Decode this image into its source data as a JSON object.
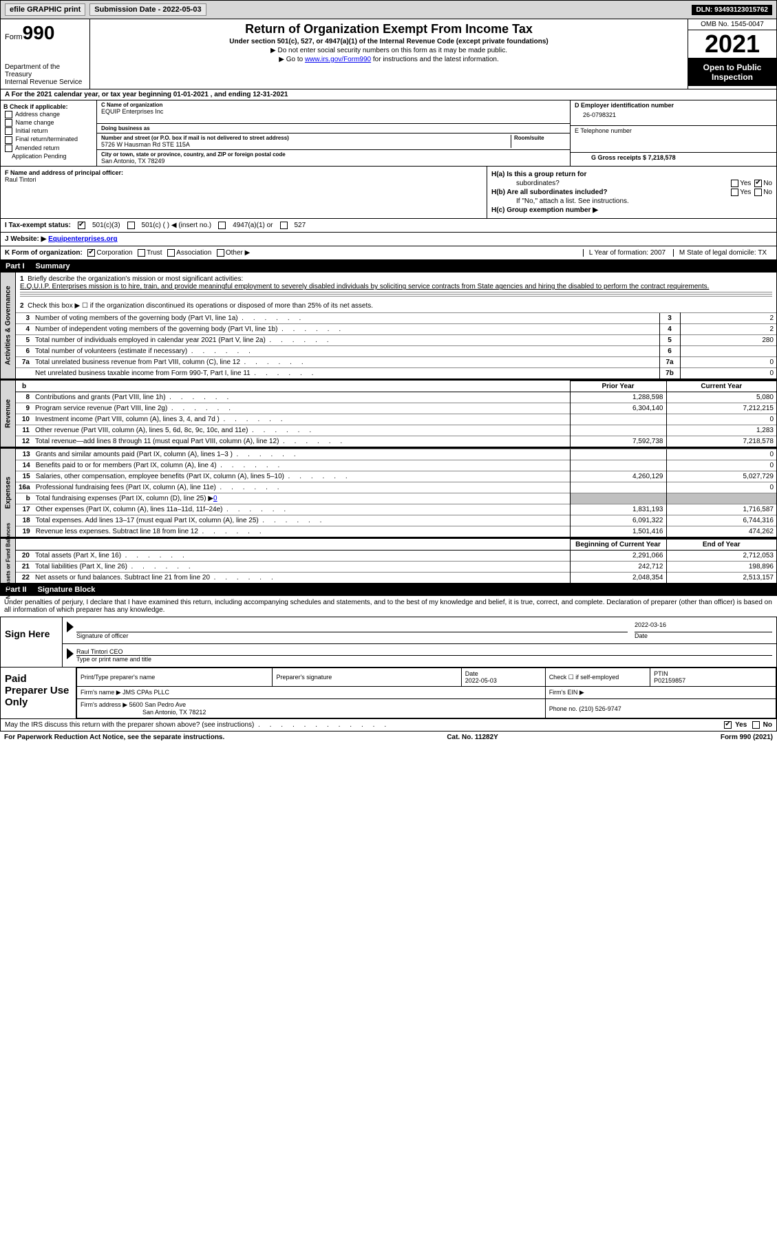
{
  "topbar": {
    "efile": "efile GRAPHIC print",
    "submission_label": "Submission Date - 2022-05-03",
    "dln": "DLN: 93493123015762"
  },
  "header": {
    "form_prefix": "Form",
    "form_num": "990",
    "title": "Return of Organization Exempt From Income Tax",
    "subtitle": "Under section 501(c), 527, or 4947(a)(1) of the Internal Revenue Code (except private foundations)",
    "note1": "▶ Do not enter social security numbers on this form as it may be made public.",
    "note2_pre": "▶ Go to ",
    "note2_link": "www.irs.gov/Form990",
    "note2_post": " for instructions and the latest information.",
    "dept": "Department of the Treasury",
    "irs": "Internal Revenue Service",
    "omb": "OMB No. 1545-0047",
    "year": "2021",
    "open": "Open to Public Inspection"
  },
  "period": {
    "text_a": "A For the 2021 calendar year, or tax year beginning 01-01-2021",
    "text_b": ", and ending 12-31-2021"
  },
  "colB": {
    "title": "B Check if applicable:",
    "items": [
      "Address change",
      "Name change",
      "Initial return",
      "Final return/terminated",
      "Amended return",
      "Application Pending"
    ]
  },
  "org": {
    "name_label": "C Name of organization",
    "name": "EQUIP Enterprises Inc",
    "dba_label": "Doing business as",
    "addr_label": "Number and street (or P.O. box if mail is not delivered to street address)",
    "room_label": "Room/suite",
    "addr": "5726 W Hausman Rd STE 115A",
    "city_label": "City or town, state or province, country, and ZIP or foreign postal code",
    "city": "San Antonio, TX  78249"
  },
  "right": {
    "ein_label": "D Employer identification number",
    "ein": "26-0798321",
    "phone_label": "E Telephone number",
    "gross_label": "G Gross receipts $ 7,218,578"
  },
  "f": {
    "label": "F  Name and address of principal officer:",
    "name": "Raul Tintori"
  },
  "h": {
    "a": "H(a)  Is this a group return for",
    "a2": "subordinates?",
    "b": "H(b)  Are all subordinates included?",
    "b2": "If \"No,\" attach a list. See instructions.",
    "c": "H(c)  Group exemption number ▶",
    "yes": "Yes",
    "no": "No"
  },
  "i": {
    "label": "I   Tax-exempt status:",
    "opt1": "501(c)(3)",
    "opt2": "501(c) (  ) ◀ (insert no.)",
    "opt3": "4947(a)(1) or",
    "opt4": "527"
  },
  "j": {
    "label": "J  Website: ▶",
    "value": "Equipenterprises.org"
  },
  "k": {
    "label": "K Form of organization:",
    "opts": [
      "Corporation",
      "Trust",
      "Association",
      "Other ▶"
    ],
    "l": "L Year of formation: 2007",
    "m": "M State of legal domicile: TX"
  },
  "parts": {
    "p1": "Part I",
    "p1t": "Summary",
    "p2": "Part II",
    "p2t": "Signature Block"
  },
  "summary": {
    "q1": "Briefly describe the organization's mission or most significant activities:",
    "mission": "E.Q.U.I.P. Enterprises mission is to hire, train, and provide meaningful employment to severely disabled individuals by soliciting service contracts from State agencies and hiring the disabled to perform the contract requirements.",
    "q2": "Check this box ▶ ☐  if the organization discontinued its operations or disposed of more than 25% of its net assets.",
    "lines_gov": [
      {
        "n": "3",
        "t": "Number of voting members of the governing body (Part VI, line 1a)",
        "box": "3",
        "v": "2"
      },
      {
        "n": "4",
        "t": "Number of independent voting members of the governing body (Part VI, line 1b)",
        "box": "4",
        "v": "2"
      },
      {
        "n": "5",
        "t": "Total number of individuals employed in calendar year 2021 (Part V, line 2a)",
        "box": "5",
        "v": "280"
      },
      {
        "n": "6",
        "t": "Total number of volunteers (estimate if necessary)",
        "box": "6",
        "v": ""
      },
      {
        "n": "7a",
        "t": "Total unrelated business revenue from Part VIII, column (C), line 12",
        "box": "7a",
        "v": "0"
      },
      {
        "n": "",
        "t": "Net unrelated business taxable income from Form 990-T, Part I, line 11",
        "box": "7b",
        "v": "0"
      }
    ],
    "py": "Prior Year",
    "cy": "Current Year",
    "lines_rev": [
      {
        "n": "8",
        "t": "Contributions and grants (Part VIII, line 1h)",
        "py": "1,288,598",
        "cy": "5,080"
      },
      {
        "n": "9",
        "t": "Program service revenue (Part VIII, line 2g)",
        "py": "6,304,140",
        "cy": "7,212,215"
      },
      {
        "n": "10",
        "t": "Investment income (Part VIII, column (A), lines 3, 4, and 7d )",
        "py": "",
        "cy": "0"
      },
      {
        "n": "11",
        "t": "Other revenue (Part VIII, column (A), lines 5, 6d, 8c, 9c, 10c, and 11e)",
        "py": "",
        "cy": "1,283"
      },
      {
        "n": "12",
        "t": "Total revenue—add lines 8 through 11 (must equal Part VIII, column (A), line 12)",
        "py": "7,592,738",
        "cy": "7,218,578"
      }
    ],
    "lines_exp": [
      {
        "n": "13",
        "t": "Grants and similar amounts paid (Part IX, column (A), lines 1–3 )",
        "py": "",
        "cy": "0"
      },
      {
        "n": "14",
        "t": "Benefits paid to or for members (Part IX, column (A), line 4)",
        "py": "",
        "cy": "0"
      },
      {
        "n": "15",
        "t": "Salaries, other compensation, employee benefits (Part IX, column (A), lines 5–10)",
        "py": "4,260,129",
        "cy": "5,027,729"
      },
      {
        "n": "16a",
        "t": "Professional fundraising fees (Part IX, column (A), line 11e)",
        "py": "",
        "cy": "0"
      }
    ],
    "line_b": {
      "n": "b",
      "t": "Total fundraising expenses (Part IX, column (D), line 25) ▶",
      "val": "0"
    },
    "lines_exp2": [
      {
        "n": "17",
        "t": "Other expenses (Part IX, column (A), lines 11a–11d, 11f–24e)",
        "py": "1,831,193",
        "cy": "1,716,587"
      },
      {
        "n": "18",
        "t": "Total expenses. Add lines 13–17 (must equal Part IX, column (A), line 25)",
        "py": "6,091,322",
        "cy": "6,744,316"
      },
      {
        "n": "19",
        "t": "Revenue less expenses. Subtract line 18 from line 12",
        "py": "1,501,416",
        "cy": "474,262"
      }
    ],
    "boy": "Beginning of Current Year",
    "eoy": "End of Year",
    "lines_na": [
      {
        "n": "20",
        "t": "Total assets (Part X, line 16)",
        "py": "2,291,066",
        "cy": "2,712,053"
      },
      {
        "n": "21",
        "t": "Total liabilities (Part X, line 26)",
        "py": "242,712",
        "cy": "198,896"
      },
      {
        "n": "22",
        "t": "Net assets or fund balances. Subtract line 21 from line 20",
        "py": "2,048,354",
        "cy": "2,513,157"
      }
    ],
    "vlabels": {
      "gov": "Activities & Governance",
      "rev": "Revenue",
      "exp": "Expenses",
      "na": "Net Assets or Fund Balances"
    }
  },
  "sig": {
    "penalty": "Under penalties of perjury, I declare that I have examined this return, including accompanying schedules and statements, and to the best of my knowledge and belief, it is true, correct, and complete. Declaration of preparer (other than officer) is based on all information of which preparer has any knowledge.",
    "sign_here": "Sign Here",
    "sig_officer": "Signature of officer",
    "date": "Date",
    "date_val": "2022-03-16",
    "name_title": "Raul Tintori CEO",
    "name_title_lab": "Type or print name and title"
  },
  "prep": {
    "title": "Paid Preparer Use Only",
    "h1": "Print/Type preparer's name",
    "h2": "Preparer's signature",
    "h3_l": "Date",
    "h3": "2022-05-03",
    "h4": "Check ☐ if self-employed",
    "h5_l": "PTIN",
    "h5": "P02159857",
    "firm_name_l": "Firm's name     ▶",
    "firm_name": "JMS CPAs PLLC",
    "firm_ein": "Firm's EIN ▶",
    "firm_addr_l": "Firm's address ▶",
    "firm_addr": "5600 San Pedro Ave",
    "firm_city": "San Antonio, TX  78212",
    "phone": "Phone no. (210) 526-9747"
  },
  "bottom": {
    "q": "May the IRS discuss this return with the preparer shown above? (see instructions)",
    "yes": "Yes",
    "no": "No"
  },
  "footer": {
    "left": "For Paperwork Reduction Act Notice, see the separate instructions.",
    "mid": "Cat. No. 11282Y",
    "right": "Form 990 (2021)"
  }
}
